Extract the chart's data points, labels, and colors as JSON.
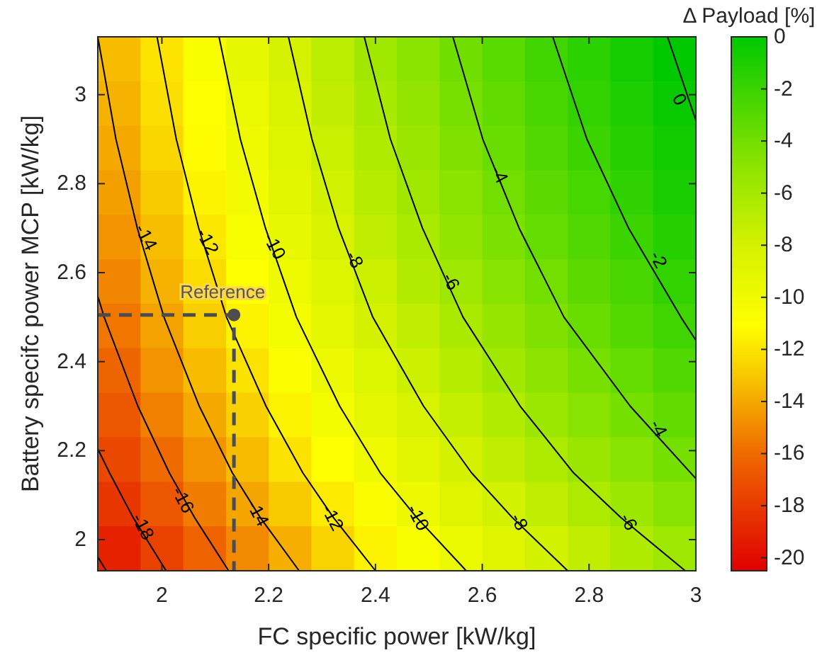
{
  "chart_data": {
    "type": "heatmap",
    "xlabel": "FC specific power [kW/kg]",
    "ylabel": "Battery specifc power MCP [kW/kg]",
    "clabel": "Δ Payload [%]",
    "xlim": [
      1.88,
      3.0
    ],
    "ylim": [
      1.93,
      3.13
    ],
    "xticks": [
      2,
      2.2,
      2.4,
      2.6,
      2.8,
      3
    ],
    "yticks": [
      2,
      2.2,
      2.4,
      2.6,
      2.8,
      3
    ],
    "clim": [
      -20.5,
      0
    ],
    "cticks": [
      -20,
      -18,
      -16,
      -14,
      -12,
      -10,
      -8,
      -6,
      -4,
      -2,
      0
    ],
    "cells": [
      [
        -13.4,
        -12.0,
        -10.6,
        -9.3,
        -8.1,
        -6.9,
        -5.8,
        -4.9,
        -3.9,
        -3.1,
        -2.2,
        -1.5,
        -0.7,
        0.0
      ],
      [
        -13.7,
        -12.2,
        -10.9,
        -9.6,
        -8.4,
        -7.2,
        -6.1,
        -5.2,
        -4.2,
        -3.4,
        -2.5,
        -1.7,
        -1.0,
        -0.3
      ],
      [
        -14.0,
        -12.5,
        -11.2,
        -9.9,
        -8.7,
        -7.5,
        -6.4,
        -5.5,
        -4.5,
        -3.7,
        -2.8,
        -2.0,
        -1.3,
        -0.6
      ],
      [
        -14.3,
        -12.9,
        -11.5,
        -10.2,
        -9.0,
        -7.9,
        -6.7,
        -5.8,
        -4.9,
        -4.0,
        -3.2,
        -2.4,
        -1.6,
        -0.9
      ],
      [
        -14.7,
        -13.3,
        -11.9,
        -10.6,
        -9.4,
        -8.2,
        -7.1,
        -6.2,
        -5.2,
        -4.4,
        -3.5,
        -2.8,
        -2.0,
        -1.3
      ],
      [
        -15.1,
        -13.7,
        -12.3,
        -11.0,
        -9.8,
        -8.7,
        -7.6,
        -6.6,
        -5.7,
        -4.8,
        -4.0,
        -3.2,
        -2.5,
        -1.7
      ],
      [
        -15.6,
        -14.2,
        -12.8,
        -11.5,
        -10.3,
        -9.2,
        -8.0,
        -7.1,
        -6.2,
        -5.3,
        -4.5,
        -3.7,
        -2.9,
        -2.2
      ],
      [
        -16.2,
        -14.7,
        -13.4,
        -12.1,
        -10.8,
        -9.7,
        -8.6,
        -7.6,
        -6.7,
        -5.8,
        -5.0,
        -4.2,
        -3.5,
        -2.8
      ],
      [
        -16.8,
        -15.3,
        -14.0,
        -12.7,
        -11.5,
        -10.3,
        -9.2,
        -8.3,
        -7.3,
        -6.5,
        -5.6,
        -4.8,
        -4.1,
        -3.4
      ],
      [
        -17.5,
        -16.0,
        -14.7,
        -13.4,
        -12.1,
        -11.0,
        -9.9,
        -8.9,
        -8.0,
        -7.1,
        -6.3,
        -5.5,
        -4.8,
        -4.1
      ],
      [
        -18.2,
        -16.8,
        -15.4,
        -14.1,
        -12.9,
        -11.8,
        -10.7,
        -9.7,
        -8.8,
        -7.9,
        -7.1,
        -6.3,
        -5.6,
        -4.8
      ],
      [
        -19.1,
        -17.7,
        -16.3,
        -15.0,
        -13.8,
        -12.6,
        -11.5,
        -10.6,
        -9.6,
        -8.8,
        -7.9,
        -7.2,
        -6.4,
        -5.7
      ]
    ],
    "series": [
      {
        "type": "line",
        "color": "#000000",
        "marker": "none",
        "x": [
          1.88,
          1.896
        ],
        "values": [
          1.961,
          1.93
        ]
      },
      {
        "type": "line",
        "color": "#000000",
        "marker": "none",
        "x": [
          1.88,
          1.902,
          1.946,
          2.008
        ],
        "values": [
          2.204,
          2.15,
          2.05,
          1.93
        ]
      },
      {
        "type": "line",
        "color": "#000000",
        "marker": "none",
        "x": [
          1.88,
          1.892,
          1.955,
          2.014,
          2.061,
          2.125
        ],
        "values": [
          2.547,
          2.5,
          2.3,
          2.15,
          2.05,
          1.93
        ]
      },
      {
        "type": "line",
        "color": "#000000",
        "marker": "none",
        "x": [
          1.88,
          1.914,
          1.954,
          2.004,
          2.07,
          2.132,
          2.184,
          2.257
        ],
        "values": [
          3.13,
          2.9,
          2.7,
          2.5,
          2.3,
          2.15,
          2.05,
          1.93
        ]
      },
      {
        "type": "line",
        "color": "#000000",
        "marker": "none",
        "x": [
          1.991,
          2.027,
          2.069,
          2.121,
          2.195,
          2.264,
          2.321,
          2.4
        ],
        "values": [
          3.13,
          2.9,
          2.7,
          2.5,
          2.3,
          2.15,
          2.05,
          1.93
        ]
      },
      {
        "type": "line",
        "color": "#000000",
        "marker": "none",
        "x": [
          2.107,
          2.147,
          2.194,
          2.252,
          2.333,
          2.409,
          2.477,
          2.57
        ],
        "values": [
          3.13,
          2.9,
          2.7,
          2.5,
          2.3,
          2.15,
          2.05,
          1.93
        ]
      },
      {
        "type": "line",
        "color": "#000000",
        "marker": "none",
        "x": [
          2.237,
          2.281,
          2.331,
          2.395,
          2.49,
          2.58,
          2.656,
          2.76
        ],
        "values": [
          3.13,
          2.9,
          2.7,
          2.5,
          2.3,
          2.15,
          2.05,
          1.93
        ]
      },
      {
        "type": "line",
        "color": "#000000",
        "marker": "none",
        "x": [
          2.379,
          2.428,
          2.488,
          2.564,
          2.671,
          2.771,
          2.859,
          2.98
        ],
        "values": [
          3.13,
          2.9,
          2.7,
          2.5,
          2.3,
          2.15,
          2.05,
          1.93
        ]
      },
      {
        "type": "line",
        "color": "#000000",
        "marker": "none",
        "x": [
          2.545,
          2.601,
          2.669,
          2.753,
          2.877,
          3.0
        ],
        "values": [
          3.13,
          2.9,
          2.7,
          2.5,
          2.3,
          2.137
        ]
      },
      {
        "type": "line",
        "color": "#000000",
        "marker": "none",
        "x": [
          2.732,
          2.796,
          2.874,
          2.972,
          3.0
        ],
        "values": [
          3.13,
          2.9,
          2.7,
          2.5,
          2.448
        ]
      },
      {
        "type": "line",
        "color": "#000000",
        "marker": "none",
        "x": [
          2.947,
          3.0
        ],
        "values": [
          3.13,
          2.942
        ]
      },
      {
        "type": "scatter",
        "x": [
          2.135
        ],
        "values": [
          2.505
        ],
        "color": "#4d4d4d",
        "marker": "circle"
      }
    ],
    "annotations": [
      {
        "text": "Reference",
        "x": 2.135,
        "y": 2.505
      },
      "-14",
      "-12",
      "-10",
      "-8",
      "-6",
      "-4",
      "-2",
      "0",
      "-18",
      "-16",
      "-14",
      "-12",
      "-10",
      "-8",
      "-6",
      "-4"
    ]
  }
}
